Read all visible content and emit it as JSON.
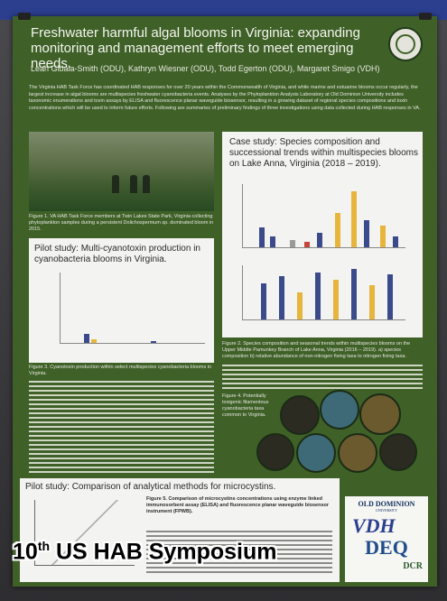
{
  "poster": {
    "title": "Freshwater harmful algal blooms in Virginia: expanding monitoring and management efforts to meet emerging needs.",
    "authors": "Leah Gibala-Smith (ODU), Kathryn Wiesner (ODU), Todd Egerton (ODU), Margaret Smigo (VDH)",
    "intro": "The Virginia HAB Task Force has coordinated HAB responses for over 20 years within the Commonwealth of Virginia, and while marine and estuarine blooms occur regularly, the largest increase in algal blooms are multispecies freshwater cyanobacteria events. Analyses by the Phytoplankton Analysis Laboratory at Old Dominion University includes taxonomic enumerations and toxin assays by ELISA and fluorescence planar waveguide biosensor, resulting in a growing dataset of regional species compositions and toxin concentrations which will be used to inform future efforts. Following are summaries of preliminary findings of three investigations using data collected during HAB responses in VA.",
    "figure1_caption": "Figure 1. VA HAB Task Force members at Twin Lakes State Park, Virginia collecting phytoplankton samples during a persistent Dolichospermum sp. dominated bloom in 2015.",
    "pilot1_title": "Pilot study: Multi-cyanotoxin production in cyanobacteria blooms in Virginia.",
    "figure3_caption": "Figure 3. Cyanotoxin production within select multispecies cyanobacteria blooms in Virginia.",
    "case_title": "Case study: Species composition and successional trends within multispecies blooms on Lake Anna, Virginia (2018 – 2019).",
    "figure2_caption": "Figure 2. Species composition and seasonal trends within multispecies blooms on the Upper Middle Pamunkey Branch of Lake Anna, Virginia (2016 – 2019). a) species composition b) relative abundance of non-nitrogen fixing taxa to nitrogen fixing taxa.",
    "figure4_caption": "Figure 4. Potentially toxigenic filamentous cyanobacteria taxa common to Virginia.",
    "pilot2_title": "Pilot study: Comparison of analytical methods for microcystins.",
    "figure5_caption": "Figure 5. Comparison of microcystins concentrations using enzyme linked immunosorbent assay (ELISA) and fluorescence planar waveguide biosensor instrument (FPWB).",
    "logos": {
      "odu_name": "OLD DOMINION",
      "odu_sub": "UNIVERSITY",
      "vdh": "VDH",
      "vdh_sub": "VIRGINIA DEPARTMENT OF HEALTH",
      "deq": "DEQ",
      "dcr": "DCR"
    }
  },
  "overlay": {
    "ordinal": "10",
    "suffix": "th",
    "rest": " US HAB Symposium"
  },
  "colors": {
    "poster_green": "#3f6128",
    "panel_bg": "#f3f4f1",
    "bar_navy": "#3b4a8a",
    "bar_gold": "#e7b53b",
    "bar_red": "#c5453a",
    "bar_gray": "#9a9a9a"
  }
}
